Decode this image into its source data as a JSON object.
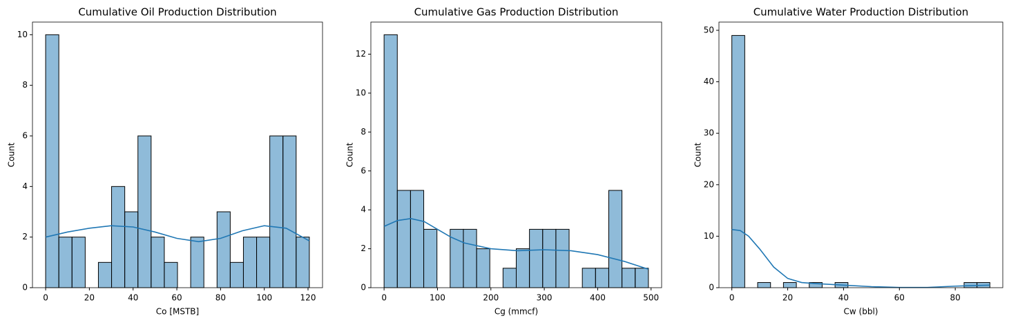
{
  "chart_data": [
    {
      "type": "histogram",
      "title": "Cumulative Oil Production Distribution",
      "xlabel": "Co [MSTB]",
      "ylabel": "Count",
      "bins": [
        0,
        6.03,
        12.06,
        18.09,
        24.12,
        30.15,
        36.18,
        42.21,
        48.24,
        54.27,
        60.3,
        66.33,
        72.36,
        78.39,
        84.42,
        90.45,
        96.48,
        102.51,
        108.54,
        114.57,
        120.6
      ],
      "counts": [
        10,
        2,
        2,
        0,
        1,
        4,
        3,
        6,
        2,
        1,
        0,
        2,
        0,
        3,
        1,
        2,
        2,
        6,
        6,
        2
      ],
      "color": "#1f77b4",
      "kde": {
        "x": [
          0,
          10,
          20,
          30,
          40,
          50,
          60,
          70,
          80,
          90,
          100,
          110,
          120.6
        ],
        "values": [
          2.0,
          2.2,
          2.35,
          2.45,
          2.4,
          2.2,
          1.95,
          1.82,
          1.95,
          2.25,
          2.45,
          2.35,
          1.85
        ]
      },
      "xlim": [
        -6.03,
        126.63
      ],
      "ylim": [
        0,
        10.5
      ],
      "xticks": [
        0,
        20,
        40,
        60,
        80,
        100,
        120
      ],
      "yticks": [
        0,
        2,
        4,
        6,
        8,
        10
      ]
    },
    {
      "type": "histogram",
      "title": "Cumulative Gas Production Distribution",
      "xlabel": "Cg (mmcf)",
      "ylabel": "Count",
      "bins": [
        0,
        24.75,
        49.5,
        74.25,
        99,
        123.75,
        148.5,
        173.25,
        198,
        222.75,
        247.5,
        272.25,
        297,
        321.75,
        346.5,
        371.25,
        396,
        420.75,
        445.5,
        470.25,
        495
      ],
      "counts": [
        13,
        5,
        5,
        3,
        0,
        3,
        3,
        2,
        0,
        1,
        2,
        3,
        3,
        3,
        0,
        1,
        1,
        5,
        1,
        1
      ],
      "color": "#1f77b4",
      "kde": {
        "x": [
          0,
          25,
          50,
          75,
          100,
          125,
          150,
          200,
          250,
          300,
          350,
          400,
          450,
          495
        ],
        "values": [
          3.15,
          3.45,
          3.55,
          3.4,
          3.0,
          2.6,
          2.3,
          2.0,
          1.9,
          1.95,
          1.9,
          1.7,
          1.35,
          0.95
        ]
      },
      "xlim": [
        -24.75,
        519.75
      ],
      "ylim": [
        0,
        13.65
      ],
      "xticks": [
        0,
        100,
        200,
        300,
        400,
        500
      ],
      "yticks": [
        0,
        2,
        4,
        6,
        8,
        10,
        12
      ]
    },
    {
      "type": "histogram",
      "title": "Cumulative Water Production Distribution",
      "xlabel": "Cw (bbl)",
      "ylabel": "Count",
      "bins": [
        0,
        4.62,
        9.24,
        13.86,
        18.48,
        23.1,
        27.72,
        32.34,
        36.96,
        41.58,
        46.2,
        50.82,
        55.44,
        60.06,
        64.68,
        69.3,
        73.92,
        78.54,
        83.16,
        87.78,
        92.4
      ],
      "counts": [
        49,
        0,
        1,
        0,
        1,
        0,
        1,
        0,
        1,
        0,
        0,
        0,
        0,
        0,
        0,
        0,
        0,
        0,
        1,
        1
      ],
      "color": "#1f77b4",
      "kde": {
        "x": [
          0,
          3,
          6,
          10,
          15,
          20,
          25,
          30,
          40,
          50,
          60,
          70,
          80,
          92.4
        ],
        "values": [
          11.3,
          11.1,
          10.0,
          7.5,
          4.0,
          1.8,
          1.0,
          0.8,
          0.5,
          0.2,
          0.05,
          0.05,
          0.3,
          0.5
        ]
      },
      "xlim": [
        -4.62,
        97.02
      ],
      "ylim": [
        0,
        51.6
      ],
      "xticks": [
        0,
        20,
        40,
        60,
        80
      ],
      "yticks": [
        0,
        10,
        20,
        30,
        40,
        50
      ]
    }
  ]
}
